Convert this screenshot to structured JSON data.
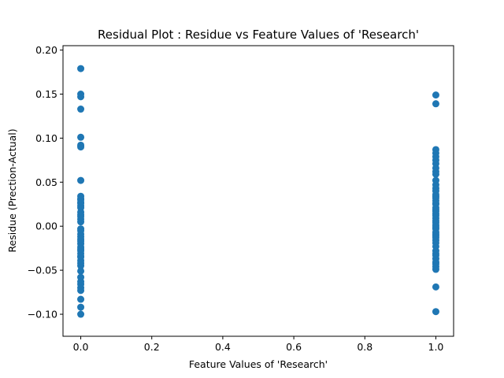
{
  "chart_data": {
    "type": "scatter",
    "title": "Residual Plot : Residue vs Feature Values of 'Research'",
    "xlabel": "Feature Values of 'Research'",
    "ylabel": "Residue (Prection-Actual)",
    "xlim": [
      -0.05,
      1.05
    ],
    "ylim": [
      -0.125,
      0.205
    ],
    "xticks": [
      0.0,
      0.2,
      0.4,
      0.6,
      0.8,
      1.0
    ],
    "xtick_labels": [
      "0.0",
      "0.2",
      "0.4",
      "0.6",
      "0.8",
      "1.0"
    ],
    "yticks": [
      -0.1,
      -0.05,
      0.0,
      0.05,
      0.1,
      0.15,
      0.2
    ],
    "ytick_labels": [
      "−0.10",
      "−0.05",
      "0.00",
      "0.05",
      "0.10",
      "0.15",
      "0.20"
    ],
    "grid": false,
    "marker_color": "#1f77b4",
    "series": [
      {
        "x": [
          0,
          0,
          0,
          0,
          0,
          0,
          0,
          0,
          0,
          0,
          0,
          0,
          0,
          0,
          0,
          0,
          0,
          0,
          0,
          0,
          0,
          0,
          0,
          0,
          0,
          0,
          0,
          0,
          0,
          0,
          0,
          0,
          0,
          0,
          0,
          0,
          0,
          0,
          0,
          0,
          0,
          0,
          0,
          0,
          0
        ],
        "y": [
          0.179,
          0.15,
          0.147,
          0.133,
          0.101,
          0.092,
          0.09,
          0.052,
          0.034,
          0.03,
          0.026,
          0.023,
          0.016,
          0.013,
          0.008,
          -0.005,
          -0.009,
          -0.017,
          -0.02,
          -0.024,
          -0.028,
          -0.031,
          -0.035,
          -0.039,
          -0.045,
          -0.051,
          -0.063,
          -0.066,
          -0.073,
          -0.083,
          -0.092,
          -0.1,
          -0.012,
          0.021,
          -0.042,
          -0.07,
          0.005,
          -0.003,
          -0.026,
          0.031,
          -0.058,
          0.011,
          -0.015,
          -0.034,
          0.027
        ]
      },
      {
        "x": [
          1,
          1,
          1,
          1,
          1,
          1,
          1,
          1,
          1,
          1,
          1,
          1,
          1,
          1,
          1,
          1,
          1,
          1,
          1,
          1,
          1,
          1,
          1,
          1,
          1,
          1,
          1,
          1,
          1,
          1,
          1,
          1,
          1,
          1,
          1,
          1,
          1,
          1,
          1,
          1,
          1,
          1,
          1,
          1,
          1,
          1,
          1,
          1
        ],
        "y": [
          0.149,
          0.139,
          0.087,
          0.083,
          0.075,
          0.071,
          0.062,
          0.059,
          0.047,
          0.043,
          0.036,
          0.032,
          0.029,
          0.025,
          0.021,
          0.017,
          0.012,
          0.009,
          0.004,
          0.001,
          -0.003,
          -0.007,
          -0.011,
          -0.016,
          -0.019,
          -0.023,
          -0.028,
          -0.033,
          -0.037,
          -0.041,
          -0.046,
          -0.049,
          -0.069,
          -0.097,
          0.079,
          0.066,
          0.052,
          0.04,
          0.034,
          0.026,
          0.014,
          0.006,
          -0.001,
          -0.009,
          -0.013,
          -0.031,
          -0.043,
          0.019
        ]
      }
    ]
  }
}
